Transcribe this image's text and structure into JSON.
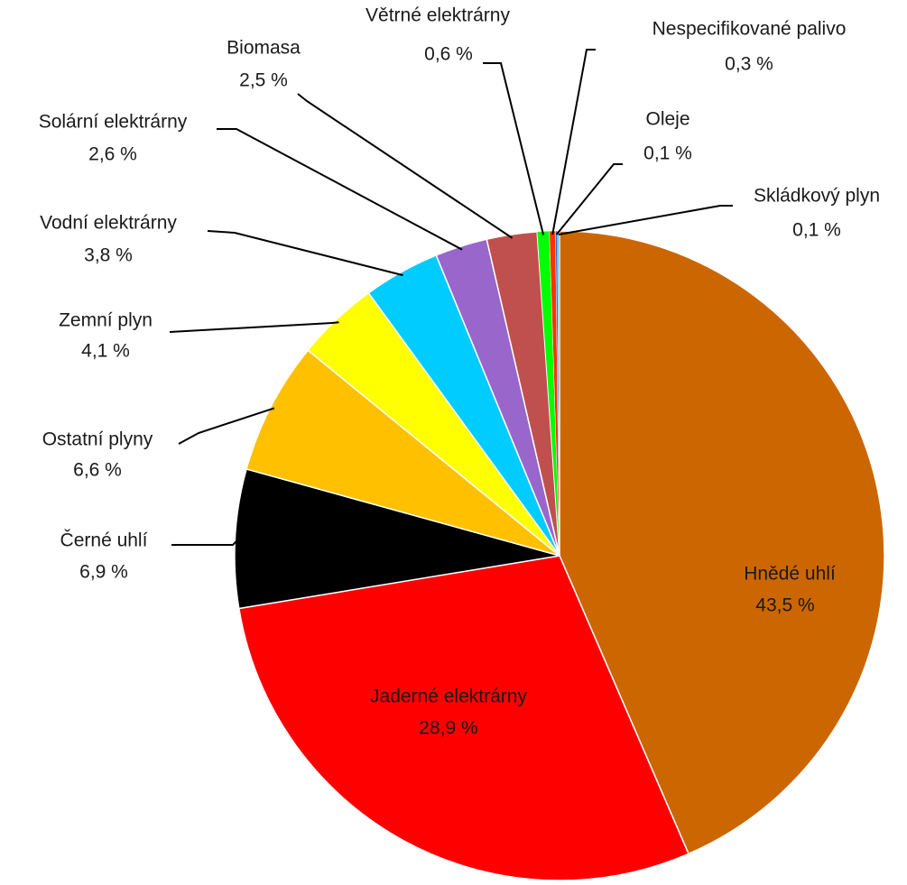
{
  "chart_data": {
    "type": "pie",
    "categories": [
      "Hnědé uhlí",
      "Jaderné elektrárny",
      "Černé uhlí",
      "Ostatní plyny",
      "Zemní plyn",
      "Vodní elektrárny",
      "Solární elektrárny",
      "Biomasa",
      "Větrné elektrárny",
      "Nespecifikované palivo",
      "Oleje",
      "Skládkový plyn"
    ],
    "values": [
      43.5,
      28.9,
      6.9,
      6.6,
      4.1,
      3.8,
      2.6,
      2.5,
      0.6,
      0.3,
      0.1,
      0.1
    ],
    "value_labels": [
      "43,5 %",
      "28,9 %",
      "6,9 %",
      "6,6 %",
      "4,1 %",
      "3,8 %",
      "2,6 %",
      "2,5 %",
      "0,6 %",
      "0,3 %",
      "0,1 %",
      "0,1 %"
    ],
    "colors": [
      "#cc6600",
      "#ff0000",
      "#000000",
      "#ffc000",
      "#ffff00",
      "#00ccff",
      "#9966cc",
      "#c0504d",
      "#00ff00",
      "#ff3300",
      "#3366cc",
      "#66ccff"
    ]
  }
}
